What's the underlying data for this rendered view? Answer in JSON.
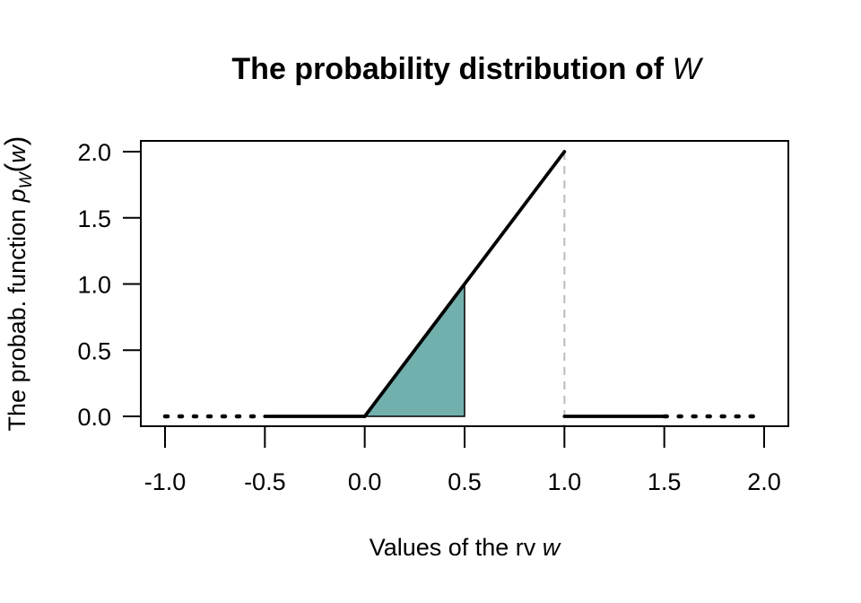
{
  "chart_data": {
    "type": "line",
    "title": "The probability distribution of W",
    "title_parts": {
      "prefix": "The probability distribution of ",
      "var": "W"
    },
    "xlabel": "Values of the rv w",
    "xlabel_parts": {
      "prefix": "Values of the rv ",
      "var": "w"
    },
    "ylabel": "The probab. function p_W(w)",
    "ylabel_parts": {
      "prefix": "The probab. function ",
      "func": "p",
      "sub": "W",
      "arg": "w"
    },
    "xlim": [
      -1.1,
      2.12
    ],
    "ylim": [
      -0.08,
      2.08
    ],
    "x_ticks": [
      -1.0,
      -0.5,
      0.0,
      0.5,
      1.0,
      1.5,
      2.0
    ],
    "x_tick_labels": [
      "-1.0",
      "-0.5",
      "0.0",
      "0.5",
      "1.0",
      "1.5",
      "2.0"
    ],
    "y_ticks": [
      0.0,
      0.5,
      1.0,
      1.5,
      2.0
    ],
    "y_tick_labels": [
      "0.0",
      "0.5",
      "1.0",
      "1.5",
      "2.0"
    ],
    "grid": false,
    "legend": null,
    "series": [
      {
        "name": "left-tail-dotted",
        "style": "dotted",
        "x": [
          -1.0,
          -0.5
        ],
        "y": [
          0,
          0
        ]
      },
      {
        "name": "left-zero-solid",
        "style": "solid",
        "x": [
          -0.5,
          0.0
        ],
        "y": [
          0,
          0
        ]
      },
      {
        "name": "density-2w",
        "style": "solid",
        "x": [
          0.0,
          1.0
        ],
        "y": [
          0,
          2
        ]
      },
      {
        "name": "right-zero-solid",
        "style": "solid",
        "x": [
          1.0,
          1.5
        ],
        "y": [
          0,
          0
        ]
      },
      {
        "name": "right-tail-dotted",
        "style": "dotted",
        "x": [
          1.5,
          2.0
        ],
        "y": [
          0,
          0
        ]
      }
    ],
    "vertical_reference": {
      "x": 1.0,
      "y_from": 0,
      "y_to": 2,
      "style": "dashed",
      "color": "#bbbbbb"
    },
    "shaded_region": {
      "x_from": 0.0,
      "x_to": 0.5,
      "polygon": [
        [
          0,
          0
        ],
        [
          0.5,
          1.0
        ],
        [
          0.5,
          0
        ]
      ],
      "fill": "#72b0ae",
      "area": 0.25
    },
    "colors": {
      "line": "#000000",
      "fill": "#72b0ae",
      "reference": "#bbbbbb"
    }
  }
}
